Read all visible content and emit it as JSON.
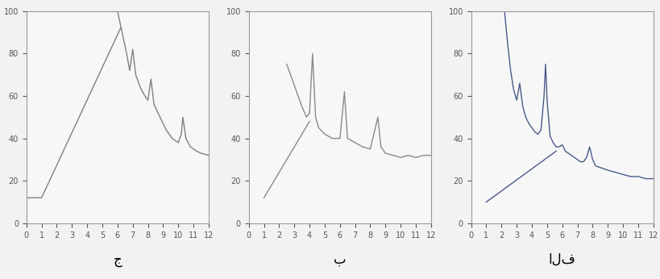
{
  "chart_data": [
    {
      "type": "line",
      "title": "ج",
      "xlim": [
        0,
        12
      ],
      "ylim": [
        0,
        100
      ],
      "xticks": [
        0,
        1,
        2,
        3,
        4,
        5,
        6,
        7,
        8,
        9,
        10,
        11,
        12
      ],
      "yticks": [
        0,
        20,
        40,
        60,
        80,
        100
      ],
      "grid": false,
      "series": [
        {
          "color": "#808080",
          "line_style": "solid",
          "x": [
            5.5,
            6.0,
            6.3,
            6.6,
            6.8,
            7.0,
            7.2,
            7.5,
            7.8,
            8.0,
            8.2,
            8.4,
            8.8,
            9.2,
            9.6,
            10.0,
            10.2,
            10.3,
            10.5,
            10.8,
            11.2,
            11.5,
            12.0
          ],
          "values": [
            100,
            100,
            90,
            80,
            72,
            82,
            70,
            64,
            60,
            58,
            68,
            56,
            50,
            44,
            40,
            38,
            42,
            50,
            40,
            36,
            34,
            33,
            32
          ]
        },
        {
          "color": "#808080",
          "line_style": "solid",
          "x": [
            0,
            1.0,
            6.2
          ],
          "values": [
            12,
            12,
            92
          ]
        }
      ]
    },
    {
      "type": "line",
      "title": "ب",
      "xlim": [
        0,
        12
      ],
      "ylim": [
        0,
        100
      ],
      "xticks": [
        0,
        1,
        2,
        3,
        4,
        5,
        6,
        7,
        8,
        9,
        10,
        11,
        12
      ],
      "yticks": [
        0,
        20,
        40,
        60,
        80,
        100
      ],
      "grid": false,
      "series": [
        {
          "color": "#8a8a8a",
          "line_style": "solid",
          "x": [
            2.5,
            3.0,
            3.5,
            3.8,
            4.0,
            4.2,
            4.4,
            4.6,
            5.0,
            5.5,
            6.0,
            6.3,
            6.5,
            7.0,
            7.5,
            8.0,
            8.5,
            8.7,
            9.0,
            9.5,
            10.0,
            10.5,
            11.0,
            11.5,
            12.0
          ],
          "values": [
            75,
            65,
            55,
            50,
            52,
            80,
            50,
            45,
            42,
            40,
            40,
            62,
            40,
            38,
            36,
            35,
            50,
            36,
            33,
            32,
            31,
            32,
            31,
            32,
            32
          ]
        },
        {
          "color": "#8a8a8a",
          "line_style": "solid",
          "x": [
            1.0,
            4.0
          ],
          "values": [
            12,
            48
          ]
        }
      ]
    },
    {
      "type": "line",
      "title": "الف",
      "xlim": [
        0,
        12
      ],
      "ylim": [
        0,
        100
      ],
      "xticks": [
        0,
        1,
        2,
        3,
        4,
        5,
        6,
        7,
        8,
        9,
        10,
        11,
        12
      ],
      "yticks": [
        0,
        20,
        40,
        60,
        80,
        100
      ],
      "grid": false,
      "series": [
        {
          "color": "#4a5a8a",
          "line_style": "solid",
          "x": [
            2.2,
            2.4,
            2.6,
            2.8,
            3.0,
            3.2,
            3.4,
            3.6,
            3.8,
            4.0,
            4.2,
            4.4,
            4.6,
            4.8,
            4.9,
            5.0,
            5.2,
            5.4,
            5.6,
            5.8,
            6.0,
            6.2,
            6.4,
            6.6,
            6.8,
            7.0,
            7.2,
            7.4,
            7.6,
            7.8,
            8.0,
            8.2,
            8.6,
            9.0,
            9.5,
            10.0,
            10.5,
            11.0,
            11.5,
            12.0
          ],
          "values": [
            100,
            85,
            72,
            63,
            58,
            66,
            55,
            50,
            47,
            45,
            43,
            42,
            44,
            60,
            75,
            58,
            41,
            38,
            36,
            36,
            37,
            34,
            33,
            32,
            31,
            30,
            29,
            29,
            31,
            36,
            30,
            27,
            26,
            25,
            24,
            23,
            22,
            22,
            21,
            21
          ]
        },
        {
          "color": "#4a5a8a",
          "line_style": "solid",
          "x": [
            1.0,
            5.6
          ],
          "values": [
            10,
            34
          ]
        }
      ]
    }
  ]
}
